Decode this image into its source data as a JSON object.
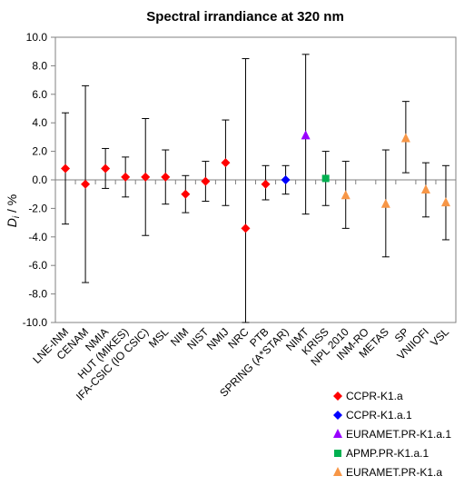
{
  "chart_data": {
    "type": "scatter",
    "title": "Spectral irrandiance at 320 nm",
    "ylabel": {
      "main": "D",
      "sub": "i",
      "rest": " / %"
    },
    "xlabel": "",
    "ylim": [
      -10,
      10
    ],
    "y_ticks": [
      "10.0",
      "8.0",
      "6.0",
      "4.0",
      "2.0",
      "0.0",
      "-2.0",
      "-4.0",
      "-6.0",
      "-8.0",
      "-10.0"
    ],
    "grid": false,
    "legend_position": "bottom-right",
    "categories": [
      "LNE-INM",
      "CENAM",
      "NMIA",
      "HUT (MIKES)",
      "IFA-CSIC (IO CSIC)",
      "MSL",
      "NIM",
      "NIST",
      "NMIJ",
      "NRC",
      "PTB",
      "SPRING (A*STAR)",
      "NIMT",
      "KRISS",
      "NPL 2010",
      "INM-RO",
      "METAS",
      "SP",
      "VNIIOFI",
      "VSL"
    ],
    "series": [
      {
        "name": "CCPR-K1.a",
        "color": "#ff0000",
        "marker": "diamond",
        "points": [
          {
            "category": "LNE-INM",
            "y": 0.8,
            "err_low": -3.1,
            "err_high": 4.7
          },
          {
            "category": "CENAM",
            "y": -0.3,
            "err_low": -7.2,
            "err_high": 6.6
          },
          {
            "category": "NMIA",
            "y": 0.8,
            "err_low": -0.6,
            "err_high": 2.2
          },
          {
            "category": "HUT (MIKES)",
            "y": 0.2,
            "err_low": -1.2,
            "err_high": 1.6
          },
          {
            "category": "IFA-CSIC (IO CSIC)",
            "y": 0.2,
            "err_low": -3.9,
            "err_high": 4.3
          },
          {
            "category": "MSL",
            "y": 0.2,
            "err_low": -1.7,
            "err_high": 2.1
          },
          {
            "category": "NIM",
            "y": -1.0,
            "err_low": -2.3,
            "err_high": 0.3
          },
          {
            "category": "NIST",
            "y": -0.1,
            "err_low": -1.5,
            "err_high": 1.3
          },
          {
            "category": "NMIJ",
            "y": 1.2,
            "err_low": -1.8,
            "err_high": 4.2
          },
          {
            "category": "NRC",
            "y": -3.4,
            "err_low": -10.0,
            "err_high": 8.5
          },
          {
            "category": "PTB",
            "y": -0.3,
            "err_low": -1.4,
            "err_high": 1.0
          }
        ]
      },
      {
        "name": "CCPR-K1.a.1",
        "color": "#0000ff",
        "marker": "diamond",
        "points": [
          {
            "category": "SPRING (A*STAR)",
            "y": 0.0,
            "err_low": -1.0,
            "err_high": 1.0
          }
        ]
      },
      {
        "name": "EURAMET.PR-K1.a.1",
        "color": "#9900ff",
        "marker": "triangle",
        "points": [
          {
            "category": "NIMT",
            "y": 3.1,
            "err_low": -2.4,
            "err_high": 8.8
          }
        ]
      },
      {
        "name": "APMP.PR-K1.a.1",
        "color": "#00b050",
        "marker": "square",
        "points": [
          {
            "category": "KRISS",
            "y": 0.1,
            "err_low": -1.8,
            "err_high": 2.0
          }
        ]
      },
      {
        "name": "EURAMET.PR-K1.a",
        "color": "#f79646",
        "marker": "triangle",
        "points": [
          {
            "category": "NPL 2010",
            "y": -1.1,
            "err_low": -3.4,
            "err_high": 1.3
          },
          {
            "category": "METAS",
            "y": -1.7,
            "err_low": -5.4,
            "err_high": 2.1
          },
          {
            "category": "SP",
            "y": 2.9,
            "err_low": 0.5,
            "err_high": 5.5
          },
          {
            "category": "VNIIOFI",
            "y": -0.7,
            "err_low": -2.6,
            "err_high": 1.2
          },
          {
            "category": "VSL",
            "y": -1.6,
            "err_low": -4.2,
            "err_high": 1.0
          }
        ]
      }
    ]
  }
}
